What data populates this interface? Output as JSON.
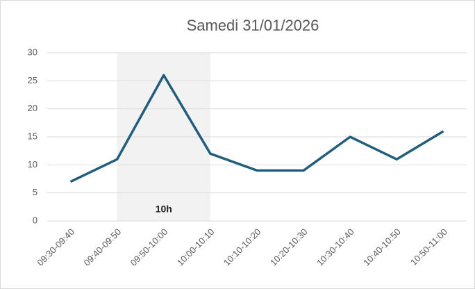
{
  "chart_data": {
    "type": "line",
    "title": "Samedi 31/01/2026",
    "categories": [
      "09:30-09:40",
      "09:40-09:50",
      "09:50-10:00",
      "10:00-10:10",
      "10:10-10:20",
      "10:20-10:30",
      "10:30-10:40",
      "10:40-10:50",
      "10:50-11:00"
    ],
    "values": [
      7,
      11,
      26,
      12,
      9,
      9,
      15,
      11,
      16
    ],
    "color": "#215e7c",
    "ylim": [
      0,
      30
    ],
    "yticks": [
      0,
      5,
      10,
      15,
      20,
      25,
      30
    ],
    "grid": true,
    "highlight": {
      "start": "09:40-09:50",
      "end": "10:00-10:10",
      "label": "10h",
      "color": "#f2f2f2"
    }
  }
}
